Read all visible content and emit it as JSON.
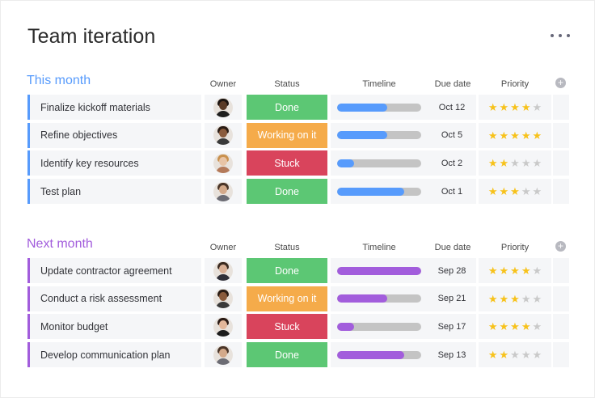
{
  "board": {
    "title": "Team iteration",
    "more_icon": "ellipsis-icon"
  },
  "columns": {
    "owner": "Owner",
    "status": "Status",
    "timeline": "Timeline",
    "due": "Due date",
    "priority": "Priority",
    "add_icon": "plus-circle-icon"
  },
  "colors": {
    "done": "#5cc774",
    "working": "#f5ab4a",
    "stuck": "#d9445c",
    "star_on": "#f7c21b",
    "star_off": "#c9c9c9",
    "this_month_accent": "#579bfc",
    "next_month_accent": "#a25ddc"
  },
  "groups": [
    {
      "title": "This month",
      "color": "#579bfc",
      "rows": [
        {
          "name": "Finalize kickoff materials",
          "status": "Done",
          "status_color": "#5cc774",
          "timeline_fraction": 0.6,
          "due": "Oct 12",
          "priority": 4,
          "avatar": {
            "skin": "#5a3a26",
            "hair": "#1c1410",
            "shirt": "#1e1e1e"
          }
        },
        {
          "name": "Refine objectives",
          "status": "Working on it",
          "status_color": "#f5ab4a",
          "timeline_fraction": 0.6,
          "due": "Oct 5",
          "priority": 5,
          "avatar": {
            "skin": "#8a5b3c",
            "hair": "#2a1c14",
            "shirt": "#3a3a3a"
          }
        },
        {
          "name": "Identify key resources",
          "status": "Stuck",
          "status_color": "#d9445c",
          "timeline_fraction": 0.2,
          "due": "Oct 2",
          "priority": 2,
          "avatar": {
            "skin": "#e8c4a6",
            "hair": "#c9914e",
            "shirt": "#b47a5a"
          }
        },
        {
          "name": "Test plan",
          "status": "Done",
          "status_color": "#5cc774",
          "timeline_fraction": 0.8,
          "due": "Oct 1",
          "priority": 3,
          "avatar": {
            "skin": "#d3a98a",
            "hair": "#4a3528",
            "shirt": "#6c6c74"
          }
        }
      ]
    },
    {
      "title": "Next month",
      "color": "#a25ddc",
      "rows": [
        {
          "name": "Update contractor agreement",
          "status": "Done",
          "status_color": "#5cc774",
          "timeline_fraction": 1.0,
          "due": "Sep 28",
          "priority": 4,
          "avatar": {
            "skin": "#d9b096",
            "hair": "#3a2a20",
            "shirt": "#2f2f38"
          }
        },
        {
          "name": "Conduct a risk assessment",
          "status": "Working on it",
          "status_color": "#f5ab4a",
          "timeline_fraction": 0.6,
          "due": "Sep 21",
          "priority": 3,
          "avatar": {
            "skin": "#8a5b3c",
            "hair": "#2a1c14",
            "shirt": "#3a3a3a"
          }
        },
        {
          "name": "Monitor budget",
          "status": "Stuck",
          "status_color": "#d9445c",
          "timeline_fraction": 0.2,
          "due": "Sep 17",
          "priority": 4,
          "avatar": {
            "skin": "#e3b79a",
            "hair": "#2a1a14",
            "shirt": "#1c1c1c"
          }
        },
        {
          "name": "Develop communication plan",
          "status": "Done",
          "status_color": "#5cc774",
          "timeline_fraction": 0.8,
          "due": "Sep 13",
          "priority": 2,
          "avatar": {
            "skin": "#d3a98a",
            "hair": "#4a3528",
            "shirt": "#6c6c74"
          }
        }
      ]
    }
  ]
}
